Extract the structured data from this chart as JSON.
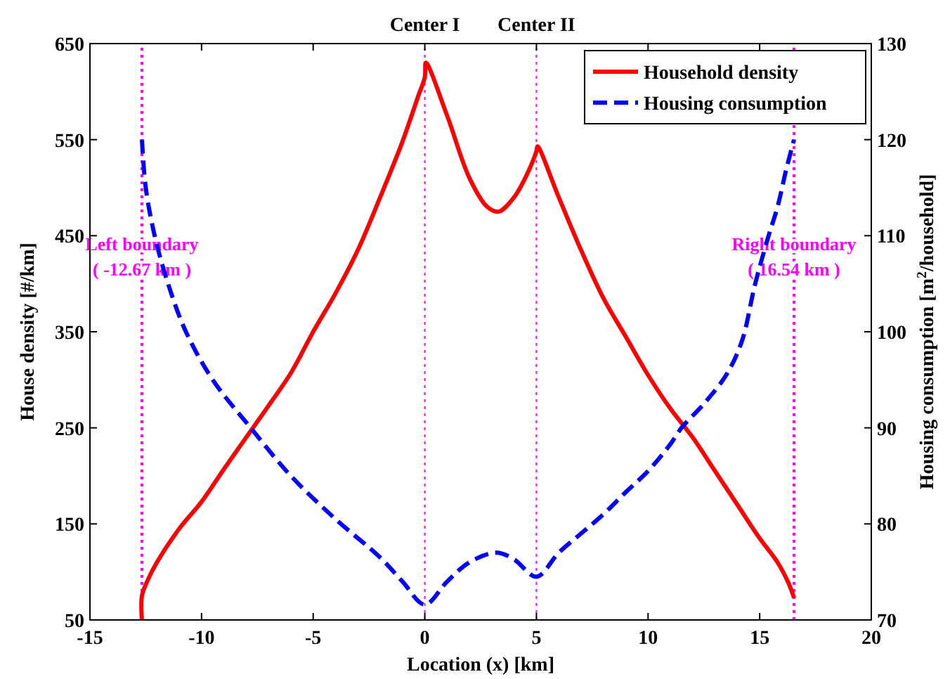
{
  "chart_data": {
    "type": "line",
    "xlabel": "Location (x) [km]",
    "ylabel": "House density [#/km]",
    "y2label": "Housing consumption [m$^{2}$/household]",
    "xlim": [
      -15,
      20
    ],
    "xticks": [
      -15,
      -10,
      -5,
      0,
      5,
      10,
      15,
      20
    ],
    "ylim": [
      50,
      650
    ],
    "yticks": [
      50,
      150,
      250,
      350,
      450,
      550,
      650
    ],
    "y2lim": [
      70,
      130
    ],
    "y2ticks": [
      70,
      80,
      90,
      100,
      110,
      120,
      130
    ],
    "grid": false,
    "legend": "top right",
    "series": [
      {
        "name": "Household density",
        "color": "#ff0000",
        "line_style": "solid",
        "x": [
          -12.67,
          -12.67,
          -12.4,
          -12,
          -11,
          -10,
          -9,
          -8,
          -7,
          -6,
          -5,
          -4,
          -3,
          -2,
          -1,
          -0.3,
          0,
          0.05,
          1,
          2,
          2.8,
          3.3,
          4,
          4.6,
          5,
          5.05,
          6,
          7,
          8,
          9,
          10,
          11,
          12,
          13,
          14,
          15,
          15.8,
          16.3,
          16.54
        ],
        "values": [
          50,
          75,
          92,
          110,
          145,
          173,
          207,
          240,
          273,
          307,
          350,
          390,
          435,
          490,
          548,
          595,
          615,
          630,
          575,
          510,
          480,
          475,
          490,
          515,
          538,
          543,
          490,
          435,
          385,
          345,
          305,
          270,
          240,
          205,
          170,
          135,
          110,
          88,
          73
        ]
      },
      {
        "name": "Housing consumption",
        "color": "#0000ff",
        "line_style": "dashed",
        "axis": "y2",
        "x": [
          -12.67,
          -12.5,
          -12.1,
          -11.5,
          -10.7,
          -9.5,
          -7.8,
          -6,
          -4,
          -2,
          -1,
          0,
          1,
          2,
          3.2,
          4,
          5,
          6,
          7,
          8,
          9,
          10,
          11,
          11.5,
          12.5,
          13.5,
          14.2,
          14.8,
          15.4,
          15.8,
          16.2,
          16.54
        ],
        "values": [
          120,
          115,
          110,
          105,
          100,
          95,
          90,
          85,
          80.5,
          76.5,
          74,
          71.6,
          74,
          76,
          77,
          76.3,
          74.5,
          77,
          79,
          81,
          83.3,
          85.5,
          88.3,
          90,
          92.5,
          95.5,
          99,
          105,
          110,
          113,
          117,
          120
        ]
      }
    ],
    "ref_lines": [
      {
        "axis": "x",
        "value": -12.67,
        "label": "Left boundary\n( -12.67 km )",
        "color": "#ff00ff",
        "line_style": "dotted"
      },
      {
        "axis": "x",
        "value": 0,
        "label": "Center I",
        "color": "#ff00ff",
        "line_style": "dotted"
      },
      {
        "axis": "x",
        "value": 5,
        "label": "Center II",
        "color": "#ff00ff",
        "line_style": "dotted"
      },
      {
        "axis": "x",
        "value": 16.54,
        "label": "Right boundary\n( 16.54 km )",
        "color": "#ff00ff",
        "line_style": "dotted"
      }
    ]
  }
}
